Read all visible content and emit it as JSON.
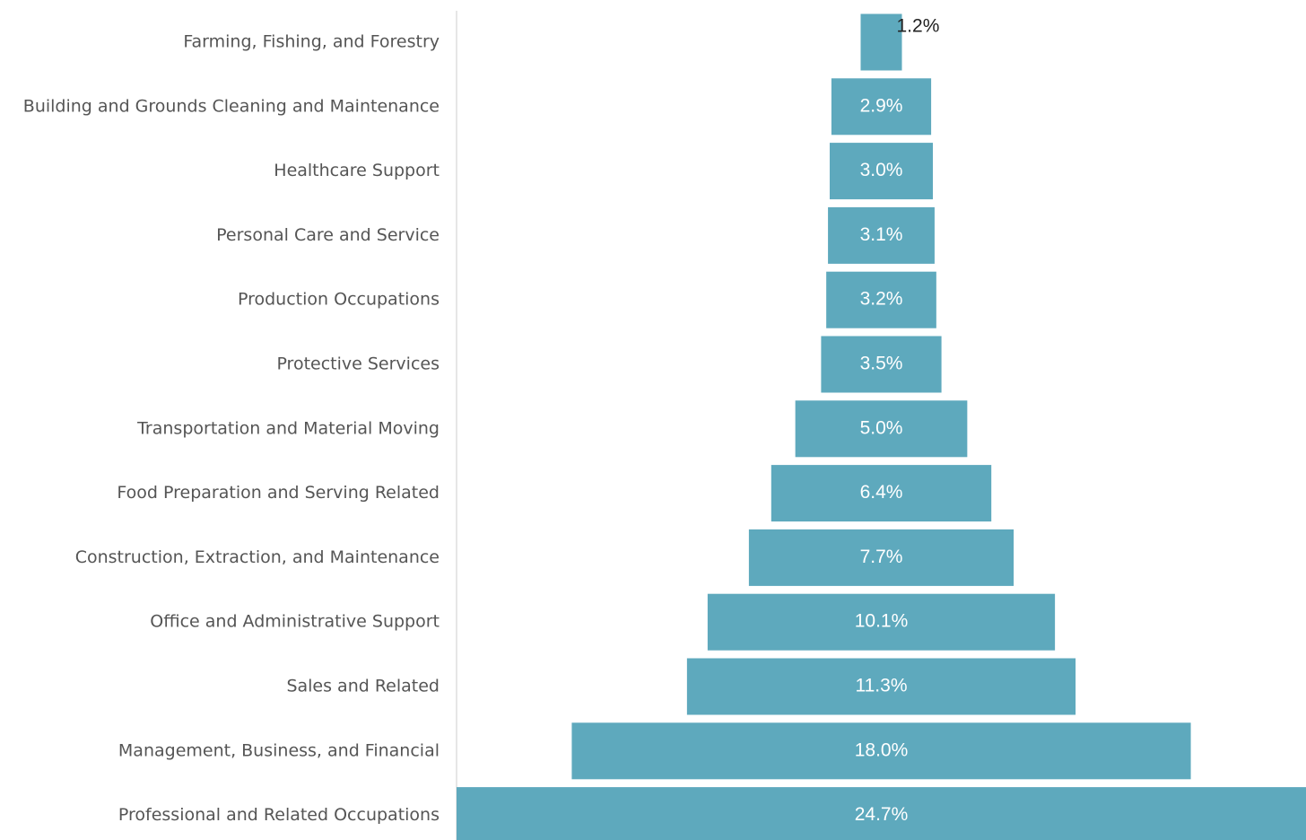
{
  "chart_data": {
    "type": "funnel",
    "color": "#5ea9bd",
    "categories": [
      "Farming, Fishing, and Forestry",
      "Building and Grounds Cleaning and Maintenance",
      "Healthcare Support",
      "Personal Care and Service",
      "Production Occupations",
      "Protective Services",
      "Transportation and Material Moving",
      "Food Preparation and Serving Related",
      "Construction, Extraction, and Maintenance",
      "Office and Administrative Support",
      "Sales and Related",
      "Management, Business, and Financial",
      "Professional and Related Occupations"
    ],
    "values": [
      1.2,
      2.9,
      3.0,
      3.1,
      3.2,
      3.5,
      5.0,
      6.4,
      7.7,
      10.1,
      11.3,
      18.0,
      24.7
    ],
    "value_labels": [
      "1.2%",
      "2.9%",
      "3.0%",
      "3.1%",
      "3.2%",
      "3.5%",
      "5.0%",
      "6.4%",
      "7.7%",
      "10.1%",
      "11.3%",
      "18.0%",
      "24.7%"
    ]
  }
}
